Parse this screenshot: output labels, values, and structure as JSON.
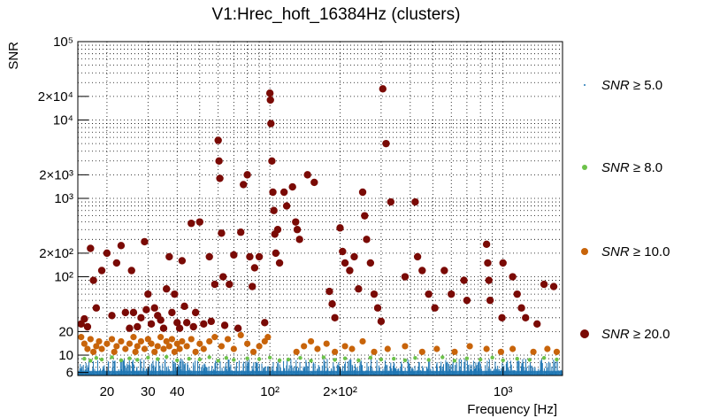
{
  "chart_data": {
    "type": "scatter",
    "title": "V1:Hrec_hoft_16384Hz (clusters)",
    "xlabel": "Frequency [Hz]",
    "ylabel": "SNR",
    "xscale": "log",
    "yscale": "log",
    "xlim": [
      15,
      1800
    ],
    "ylim": [
      5.5,
      100000
    ],
    "grid": true,
    "x_ticks": [
      {
        "value": 20,
        "label": "20"
      },
      {
        "value": 30,
        "label": "30"
      },
      {
        "value": 40,
        "label": "40"
      },
      {
        "value": 100,
        "label": "10²"
      },
      {
        "value": 200,
        "label": "2×10²"
      },
      {
        "value": 1000,
        "label": "10³"
      }
    ],
    "y_ticks": [
      {
        "value": 6,
        "label": "6"
      },
      {
        "value": 10,
        "label": "10"
      },
      {
        "value": 20,
        "label": "20"
      },
      {
        "value": 100,
        "label": "10²"
      },
      {
        "value": 200,
        "label": "2×10²"
      },
      {
        "value": 1000,
        "label": "10³"
      },
      {
        "value": 2000,
        "label": "2×10³"
      },
      {
        "value": 10000,
        "label": "10⁴"
      },
      {
        "value": 20000,
        "label": "2×10⁴"
      },
      {
        "value": 100000,
        "label": "10⁵"
      }
    ],
    "legend": [
      {
        "name": "SNR",
        "op": "≥ 5.0",
        "color": "#1f77b4"
      },
      {
        "name": "SNR",
        "op": "≥ 8.0",
        "color": "#6cc24a"
      },
      {
        "name": "SNR",
        "op": "≥ 10.0",
        "color": "#c8640a"
      },
      {
        "name": "SNR",
        "op": "≥ 20.0",
        "color": "#7a0a05"
      }
    ],
    "series": [
      {
        "name": "SNR ≥ 5.0",
        "color": "#1f77b4",
        "marker": "dense-band",
        "x_range": [
          15,
          1800
        ],
        "y_range": [
          5.5,
          9
        ]
      },
      {
        "name": "SNR ≥ 8.0",
        "color": "#6cc24a",
        "marker": "small-dot",
        "points": [
          [
            16,
            9
          ],
          [
            17,
            8.5
          ],
          [
            18,
            9.2
          ],
          [
            19,
            8.8
          ],
          [
            21,
            9.4
          ],
          [
            23,
            8.6
          ],
          [
            25,
            9.1
          ],
          [
            27,
            8.7
          ],
          [
            30,
            9.3
          ],
          [
            33,
            8.9
          ],
          [
            36,
            9.5
          ],
          [
            40,
            8.6
          ],
          [
            45,
            9
          ],
          [
            50,
            8.8
          ],
          [
            55,
            9.4
          ],
          [
            60,
            8.5
          ],
          [
            65,
            9.2
          ],
          [
            70,
            8.7
          ],
          [
            80,
            9.1
          ],
          [
            90,
            8.9
          ],
          [
            100,
            9.3
          ],
          [
            110,
            8.6
          ],
          [
            120,
            8.8
          ],
          [
            135,
            9.2
          ],
          [
            150,
            8.5
          ],
          [
            170,
            9.4
          ],
          [
            190,
            8.7
          ],
          [
            210,
            9.1
          ],
          [
            240,
            8.6
          ],
          [
            270,
            9.3
          ],
          [
            300,
            8.8
          ],
          [
            340,
            9
          ],
          [
            380,
            8.6
          ],
          [
            420,
            9.2
          ],
          [
            480,
            8.7
          ],
          [
            550,
            9.4
          ],
          [
            620,
            8.5
          ],
          [
            700,
            9.1
          ],
          [
            800,
            8.8
          ],
          [
            900,
            9.3
          ],
          [
            1000,
            8.6
          ],
          [
            1150,
            9
          ],
          [
            1300,
            8.7
          ],
          [
            1500,
            9.2
          ],
          [
            1700,
            8.8
          ]
        ]
      },
      {
        "name": "SNR ≥ 10.0",
        "color": "#c8640a",
        "marker": "medium-dot",
        "points": [
          [
            15.5,
            17
          ],
          [
            16,
            14
          ],
          [
            16.5,
            12
          ],
          [
            17,
            16
          ],
          [
            17.5,
            11
          ],
          [
            18,
            13
          ],
          [
            18.5,
            15
          ],
          [
            19,
            12
          ],
          [
            20,
            14
          ],
          [
            21,
            16
          ],
          [
            21.5,
            11
          ],
          [
            22,
            13
          ],
          [
            23,
            15
          ],
          [
            24,
            12
          ],
          [
            25,
            14
          ],
          [
            26,
            17
          ],
          [
            26.5,
            11
          ],
          [
            27,
            13
          ],
          [
            28,
            15
          ],
          [
            29,
            12
          ],
          [
            30,
            16
          ],
          [
            31,
            14
          ],
          [
            32,
            11
          ],
          [
            33,
            13
          ],
          [
            34,
            17
          ],
          [
            35,
            12
          ],
          [
            36,
            15
          ],
          [
            37,
            13
          ],
          [
            38,
            16
          ],
          [
            39,
            11
          ],
          [
            40,
            14
          ],
          [
            41,
            12
          ],
          [
            42,
            15
          ],
          [
            44,
            13
          ],
          [
            46,
            16
          ],
          [
            48,
            11
          ],
          [
            50,
            14
          ],
          [
            52,
            12
          ],
          [
            55,
            15
          ],
          [
            58,
            17
          ],
          [
            62,
            13
          ],
          [
            66,
            16
          ],
          [
            70,
            12
          ],
          [
            75,
            18
          ],
          [
            80,
            14
          ],
          [
            85,
            11
          ],
          [
            90,
            13
          ],
          [
            95,
            15
          ],
          [
            98,
            17
          ],
          [
            130,
            11
          ],
          [
            140,
            13
          ],
          [
            150,
            15
          ],
          [
            160,
            12
          ],
          [
            175,
            14
          ],
          [
            190,
            11
          ],
          [
            210,
            13
          ],
          [
            225,
            12
          ],
          [
            250,
            15
          ],
          [
            280,
            11
          ],
          [
            320,
            12
          ],
          [
            380,
            13
          ],
          [
            450,
            11
          ],
          [
            520,
            12
          ],
          [
            620,
            11
          ],
          [
            720,
            13
          ],
          [
            850,
            12
          ],
          [
            980,
            11
          ],
          [
            1100,
            12
          ],
          [
            1350,
            11
          ],
          [
            1550,
            12
          ],
          [
            1700,
            11
          ]
        ]
      },
      {
        "name": "SNR ≥ 20.0",
        "color": "#7a0a05",
        "marker": "large-dot",
        "points": [
          [
            15.5,
            25
          ],
          [
            16,
            29
          ],
          [
            16.5,
            23
          ],
          [
            17,
            230
          ],
          [
            17.5,
            90
          ],
          [
            18,
            40
          ],
          [
            19,
            120
          ],
          [
            20,
            200
          ],
          [
            21,
            32
          ],
          [
            22,
            150
          ],
          [
            23,
            250
          ],
          [
            24,
            35
          ],
          [
            25,
            22
          ],
          [
            25.5,
            120
          ],
          [
            26,
            35
          ],
          [
            27,
            23
          ],
          [
            28,
            30
          ],
          [
            29,
            280
          ],
          [
            29.5,
            38
          ],
          [
            30,
            60
          ],
          [
            31,
            25
          ],
          [
            32,
            40
          ],
          [
            33,
            32
          ],
          [
            34,
            28
          ],
          [
            35,
            22
          ],
          [
            36,
            70
          ],
          [
            37,
            180
          ],
          [
            38,
            35
          ],
          [
            39,
            60
          ],
          [
            40,
            26
          ],
          [
            41,
            22
          ],
          [
            42,
            160
          ],
          [
            43,
            42
          ],
          [
            44,
            26
          ],
          [
            46,
            480
          ],
          [
            47,
            23
          ],
          [
            48,
            35
          ],
          [
            50,
            500
          ],
          [
            52,
            25
          ],
          [
            55,
            180
          ],
          [
            56,
            27
          ],
          [
            58,
            80
          ],
          [
            60,
            5500
          ],
          [
            60.5,
            3000
          ],
          [
            61,
            1800
          ],
          [
            62,
            360
          ],
          [
            63,
            100
          ],
          [
            64,
            24
          ],
          [
            67,
            80
          ],
          [
            70,
            190
          ],
          [
            73,
            22
          ],
          [
            75,
            370
          ],
          [
            77,
            1500
          ],
          [
            80,
            2000
          ],
          [
            82,
            180
          ],
          [
            84,
            75
          ],
          [
            86,
            130
          ],
          [
            90,
            180
          ],
          [
            95,
            26
          ],
          [
            100,
            22000
          ],
          [
            100.5,
            18000
          ],
          [
            101,
            9000
          ],
          [
            102,
            3000
          ],
          [
            103,
            1200
          ],
          [
            104,
            700
          ],
          [
            105,
            350
          ],
          [
            106,
            200
          ],
          [
            108,
            400
          ],
          [
            110,
            150
          ],
          [
            115,
            1200
          ],
          [
            118,
            800
          ],
          [
            125,
            1400
          ],
          [
            129,
            500
          ],
          [
            131,
            400
          ],
          [
            134,
            300
          ],
          [
            145,
            2000
          ],
          [
            155,
            1600
          ],
          [
            180,
            65
          ],
          [
            185,
            45
          ],
          [
            190,
            30
          ],
          [
            200,
            420
          ],
          [
            205,
            210
          ],
          [
            210,
            150
          ],
          [
            220,
            120
          ],
          [
            230,
            180
          ],
          [
            240,
            70
          ],
          [
            250,
            1200
          ],
          [
            255,
            600
          ],
          [
            260,
            300
          ],
          [
            270,
            150
          ],
          [
            280,
            60
          ],
          [
            290,
            40
          ],
          [
            300,
            27
          ],
          [
            305,
            25000
          ],
          [
            315,
            5000
          ],
          [
            330,
            900
          ],
          [
            380,
            100
          ],
          [
            420,
            900
          ],
          [
            430,
            180
          ],
          [
            450,
            120
          ],
          [
            480,
            60
          ],
          [
            510,
            40
          ],
          [
            560,
            120
          ],
          [
            600,
            60
          ],
          [
            680,
            90
          ],
          [
            700,
            50
          ],
          [
            850,
            260
          ],
          [
            860,
            150
          ],
          [
            870,
            90
          ],
          [
            880,
            50
          ],
          [
            990,
            30
          ],
          [
            1000,
            150
          ],
          [
            1100,
            100
          ],
          [
            1150,
            60
          ],
          [
            1200,
            40
          ],
          [
            1250,
            30
          ],
          [
            1400,
            25
          ],
          [
            1500,
            80
          ],
          [
            1650,
            75
          ]
        ]
      }
    ]
  }
}
